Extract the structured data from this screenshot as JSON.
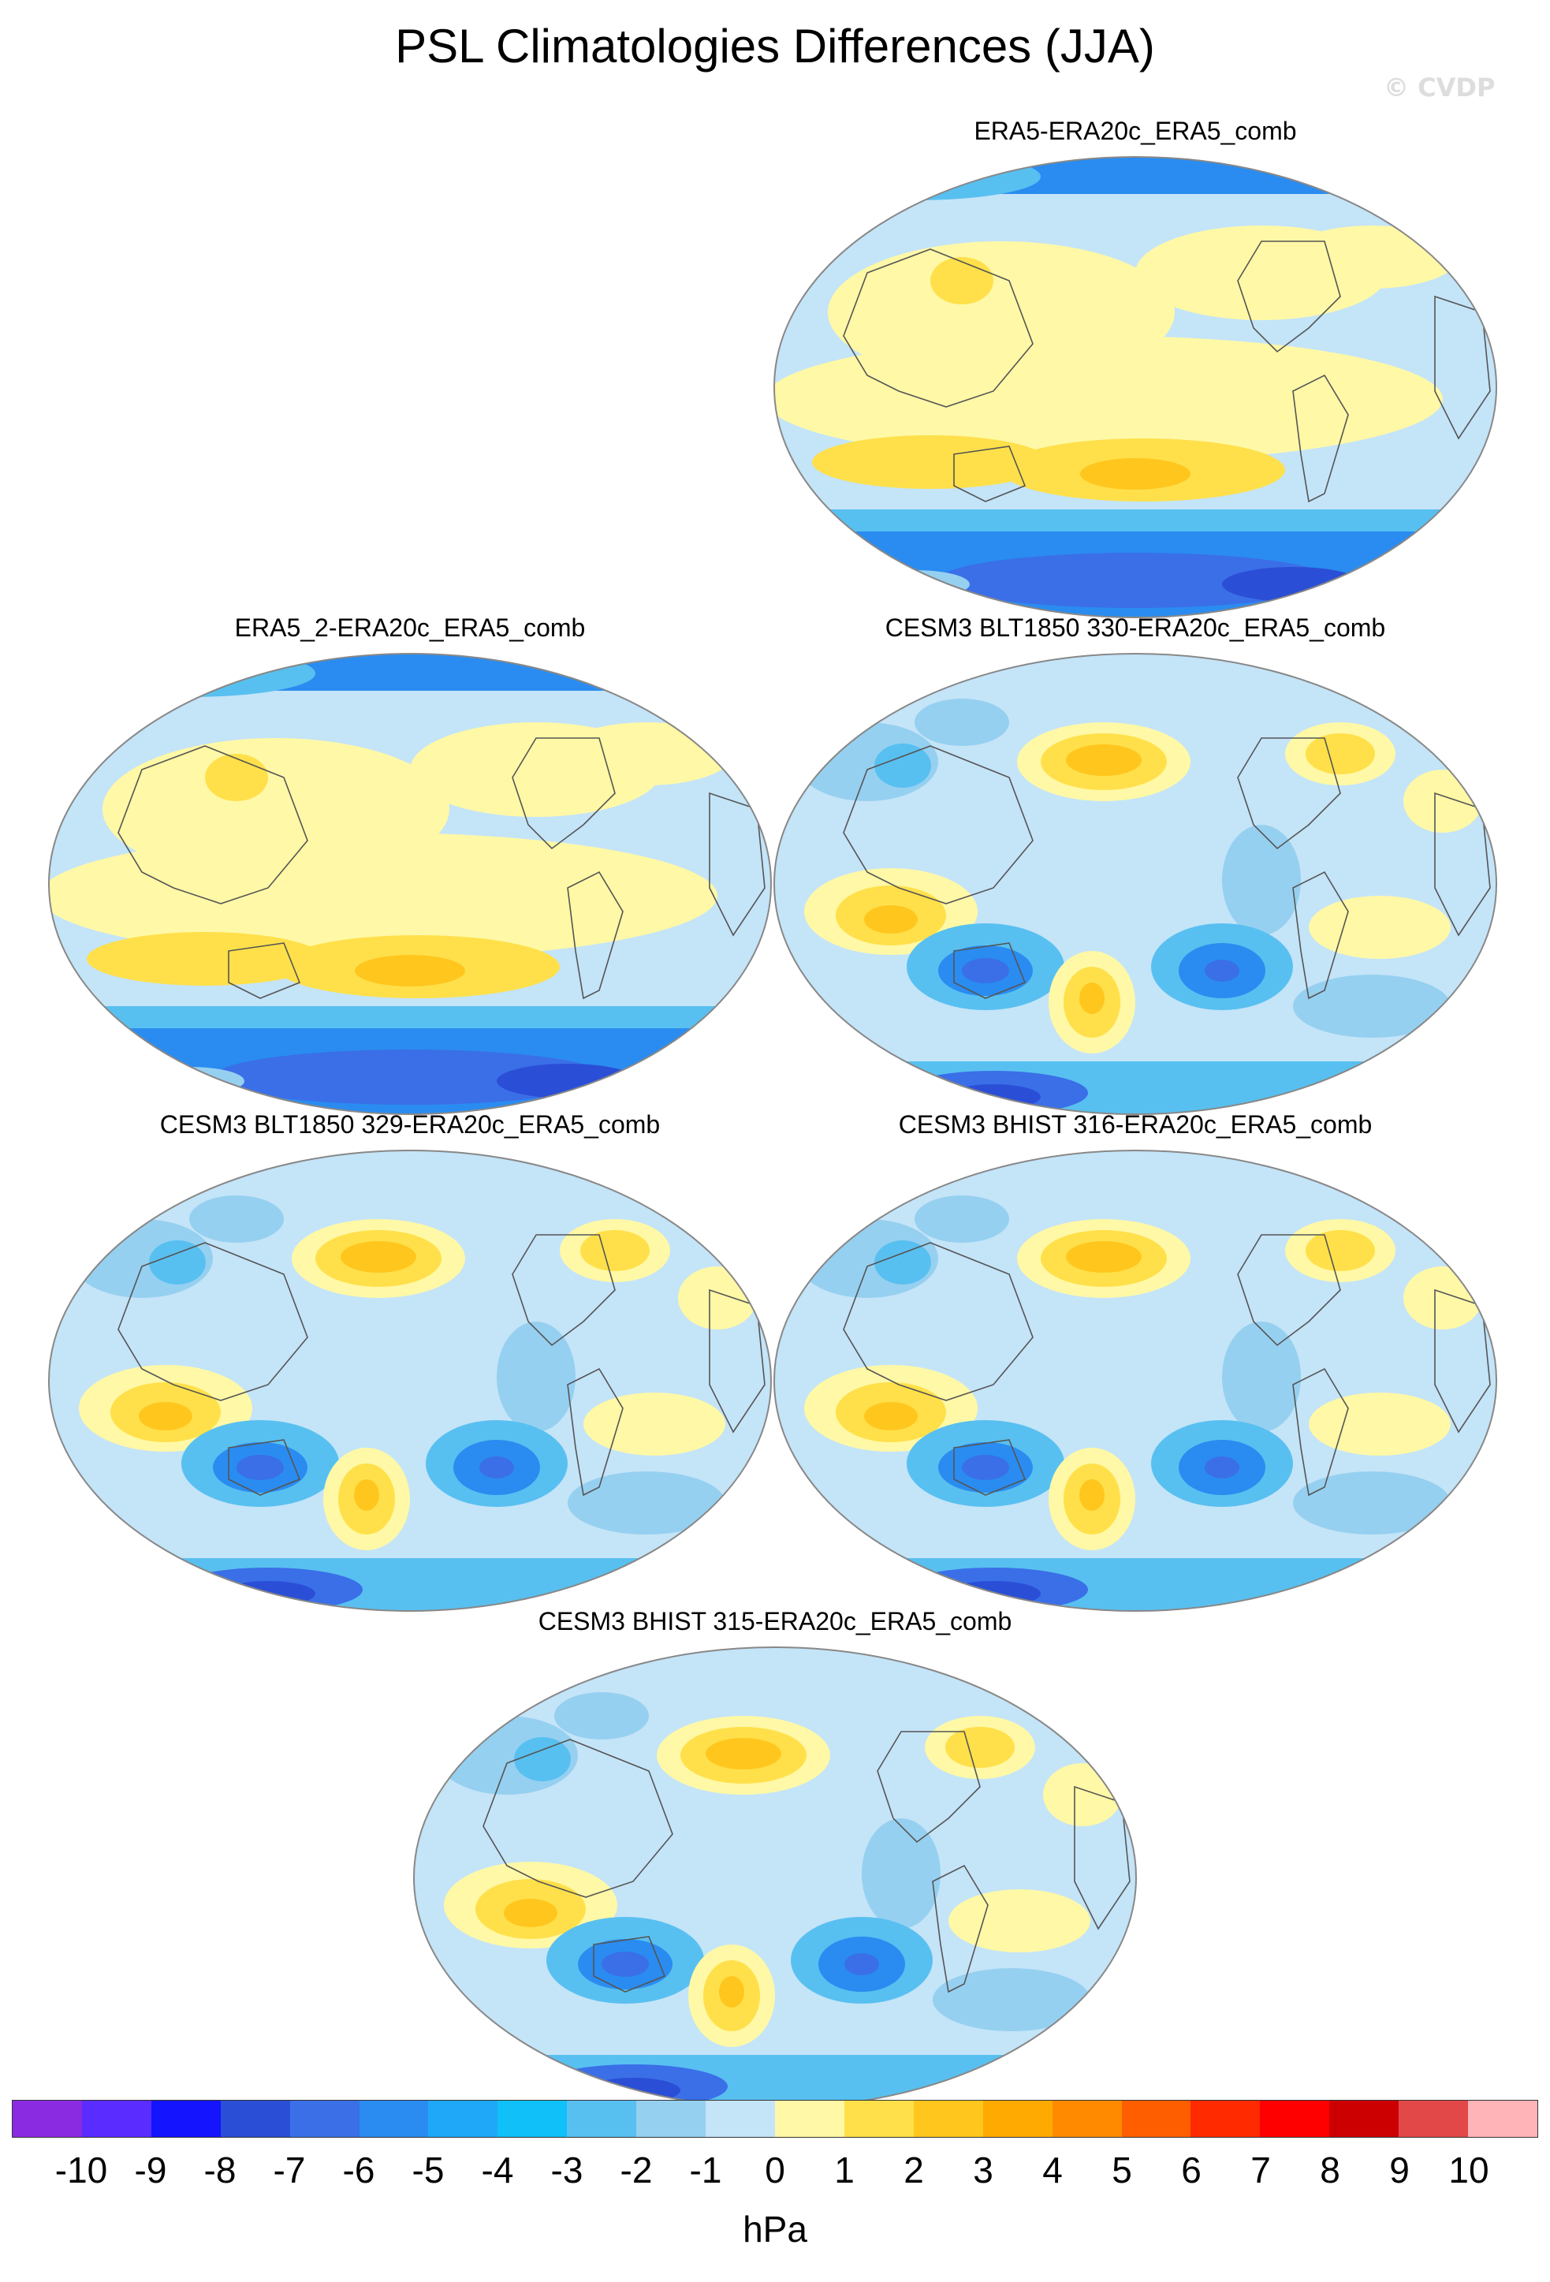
{
  "title": "PSL Climatologies Differences (JJA)",
  "watermark": "© CVDP",
  "panels": [
    {
      "label": "ERA5-ERA20c_ERA5_comb",
      "pattern": "reanalysis"
    },
    {
      "label": "ERA5_2-ERA20c_ERA5_comb",
      "pattern": "reanalysis"
    },
    {
      "label": "CESM3 BLT1850 330-ERA20c_ERA5_comb",
      "pattern": "model"
    },
    {
      "label": "CESM3 BLT1850 329-ERA20c_ERA5_comb",
      "pattern": "model"
    },
    {
      "label": "CESM3 BHIST 316-ERA20c_ERA5_comb",
      "pattern": "model"
    },
    {
      "label": "CESM3 BHIST 315-ERA20c_ERA5_comb",
      "pattern": "model"
    }
  ],
  "colorbar": {
    "colors": [
      "#8a2be2",
      "#5a2cff",
      "#1414ff",
      "#2a4fd6",
      "#3a6fe8",
      "#2a8cf0",
      "#1fa8f8",
      "#10c0f8",
      "#58c0f0",
      "#96d0f0",
      "#c4e4f8",
      "#fff8a6",
      "#ffe04a",
      "#ffc61e",
      "#ffaa00",
      "#ff8a00",
      "#ff5e00",
      "#ff2a00",
      "#ff0000",
      "#cc0000",
      "#e24848",
      "#ffb4b8"
    ],
    "ticks": [
      "-10",
      "-9",
      "-8",
      "-7",
      "-6",
      "-5",
      "-4",
      "-3",
      "-2",
      "-1",
      "0",
      "1",
      "2",
      "3",
      "4",
      "5",
      "6",
      "7",
      "8",
      "9",
      "10"
    ],
    "units": "hPa"
  }
}
